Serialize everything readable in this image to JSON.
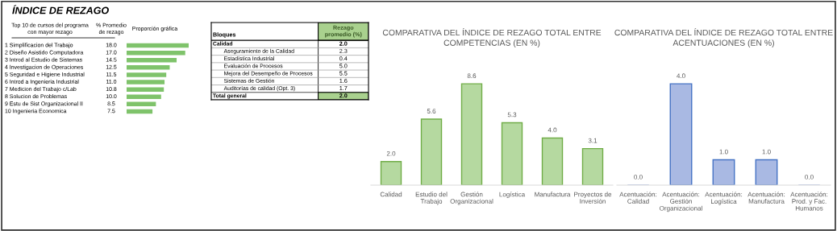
{
  "chart_data": [
    {
      "type": "bar",
      "orientation": "horizontal",
      "title": "ÍNDICE DE REZAGO",
      "annotations": [
        "Top 10 de cursos del programa con mayor rezago",
        "% Promedio de rezago",
        "Proporción gráfica"
      ],
      "categories": [
        "1 Simplificacion del Trabajo",
        "2 Diseño Asistido Computadora",
        "3 Introd al Estudio de Sistemas",
        "4 Investigacion de Operaciones",
        "5 Seguridad e Higiene Industrial",
        "6 Introd a Ingenieria Industrial",
        "7 Medicion del Trabajo c/Lab",
        "8 Solucion de Problemas",
        "9 Estu de Sist Organizacional II",
        "10 Ingenieria Economica"
      ],
      "values": [
        18.0,
        17.0,
        14.5,
        12.5,
        11.5,
        11.0,
        10.8,
        10.0,
        8.5,
        7.5
      ],
      "value_labels": [
        "18.0",
        "17.0",
        "14.5",
        "12.5",
        "11.5",
        "11.0",
        "10.8",
        "10.0",
        "8.5",
        "7.5"
      ],
      "color": "#7fc36b"
    },
    {
      "type": "other",
      "xlabel": "Bloques",
      "ylabel": "Rezago promedio (%)",
      "categories": [
        "Calidad",
        "Aseguramiento de la Calidad",
        "Estadística Industrial",
        "Evaluación de Procesos",
        "Mejora del Desempeño de Procesos",
        "Sistemas de Gestión",
        "Auditorías de calidad (Opt. 3)",
        "Total general"
      ],
      "value_labels": [
        "2.0",
        "2.3",
        "0.4",
        "5.0",
        "5.5",
        "1.6",
        "1.7",
        "2.0"
      ],
      "color": "#a9d18e"
    },
    {
      "type": "bar",
      "title": "COMPARATIVA DEL ÍNDICE DE REZAGO TOTAL ENTRE COMPETENCIAS (EN %)",
      "categories": [
        "Calidad",
        "Estudio del Trabajo",
        "Gestión Organizacional",
        "Logística",
        "Manufactura",
        "Proyectos de Inversión"
      ],
      "values": [
        2.0,
        5.6,
        8.6,
        5.3,
        4.0,
        3.1
      ],
      "value_labels": [
        "2.0",
        "5.6",
        "8.6",
        "5.3",
        "4.0",
        "3.1"
      ],
      "color": "#b5d9a0"
    },
    {
      "type": "bar",
      "title": "COMPARATIVA DEL ÍNDICE DE REZAGO TOTAL ENTRE ACENTUACIONES (EN %)",
      "categories": [
        "Acentuación: Calidad",
        "Acentuación: Gestión Organizacional",
        "Acentuación: Logística",
        "Acentuación: Manufactura",
        "Acentuación: Prod. y Fac. Humanos"
      ],
      "values": [
        0.0,
        4.0,
        1.0,
        1.0,
        0.0
      ],
      "value_labels": [
        "0.0",
        "4.0",
        "1.0",
        "1.0",
        "0.0"
      ],
      "color": "#a9b9e3"
    }
  ]
}
